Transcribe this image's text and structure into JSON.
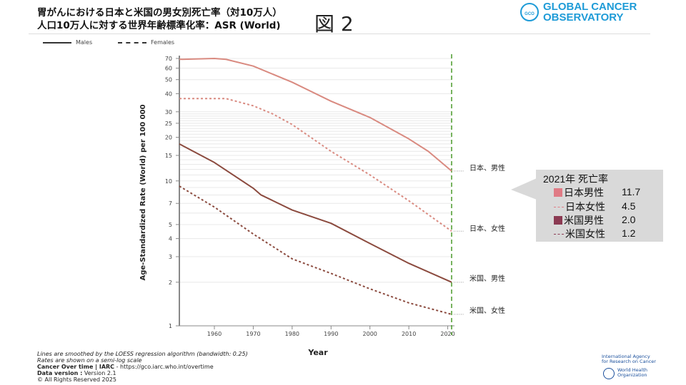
{
  "header": {
    "title_line1": "胃がんにおける日本と米国の男女別死亡率（対10万人）",
    "title_line2": "人口10万人に対する世界年齢標準化率：ASR (World)",
    "figure_label": "図 2",
    "logo_line1": "GLOBAL CANCER",
    "logo_line2": "OBSERVATORY",
    "logo_mark": "GCO"
  },
  "legend": {
    "males": "Males",
    "females": "Females"
  },
  "chart_data": {
    "type": "line",
    "title": "",
    "xlabel": "Year",
    "ylabel": "Age-Standardized Rate (World) per 100 000",
    "yscale": "log",
    "ylim": [
      1,
      70
    ],
    "xlim": [
      1951,
      2021
    ],
    "grid": true,
    "legend_placement": "top-left",
    "x_ticks": [
      1960,
      1970,
      1980,
      1990,
      2000,
      2010,
      2020
    ],
    "y_ticks": [
      1,
      2,
      3,
      4,
      5,
      7,
      10,
      15,
      20,
      25,
      30,
      40,
      50,
      60,
      70
    ],
    "marker_year": 2021,
    "series": [
      {
        "name": "日本、男性",
        "style": "solid",
        "color": "#d98a80",
        "x": [
          1951,
          1960,
          1963,
          1970,
          1980,
          1990,
          2000,
          2010,
          2015,
          2021
        ],
        "y": [
          69,
          70,
          69,
          62,
          48,
          35.5,
          27.4,
          19.5,
          16,
          11.7
        ]
      },
      {
        "name": "日本、女性",
        "style": "dashed",
        "color": "#d98a80",
        "x": [
          1951,
          1963,
          1970,
          1975,
          1980,
          1990,
          2000,
          2010,
          2021
        ],
        "y": [
          37,
          37,
          33,
          29,
          24.5,
          16,
          11,
          7.3,
          4.5
        ]
      },
      {
        "name": "米国、男性",
        "style": "solid",
        "color": "#8b4a3e",
        "x": [
          1951,
          1960,
          1970,
          1972,
          1980,
          1990,
          2000,
          2010,
          2021
        ],
        "y": [
          18,
          13.4,
          8.9,
          8,
          6.3,
          5.1,
          3.7,
          2.7,
          2.0
        ]
      },
      {
        "name": "米国、女性",
        "style": "dashed",
        "color": "#8b4a3e",
        "x": [
          1951,
          1960,
          1970,
          1980,
          1990,
          2000,
          2010,
          2021
        ],
        "y": [
          9.2,
          6.6,
          4.3,
          2.9,
          2.3,
          1.8,
          1.44,
          1.2
        ]
      }
    ]
  },
  "callout": {
    "title": "2021年 死亡率",
    "rows": [
      {
        "label": "日本男性",
        "value": "11.7",
        "color": "#e07b85",
        "kind": "square"
      },
      {
        "label": "日本女性",
        "value": "4.5",
        "color": "#e07b85",
        "kind": "dash"
      },
      {
        "label": "米国男性",
        "value": "2.0",
        "color": "#8b3a52",
        "kind": "square"
      },
      {
        "label": "米国女性",
        "value": "1.2",
        "color": "#8b3a52",
        "kind": "dash"
      }
    ]
  },
  "footer": {
    "line1": "Lines are smoothed by the LOESS regression algorithm (bandwidth: 0.25)",
    "line2": "Rates are shown on a semi-log scale",
    "line3_bold": "Cancer Over time | IARC",
    "line3_rest": " - https://gco.iarc.who.int/overtime",
    "line4_bold": "Data version :",
    "line4_rest": " Version 2.1",
    "line5": "© All Rights Reserved 2025"
  },
  "partners": {
    "iarc_line1": "International Agency",
    "iarc_line2": "for Research on Cancer",
    "who_line1": "World Health",
    "who_line2": "Organization"
  }
}
